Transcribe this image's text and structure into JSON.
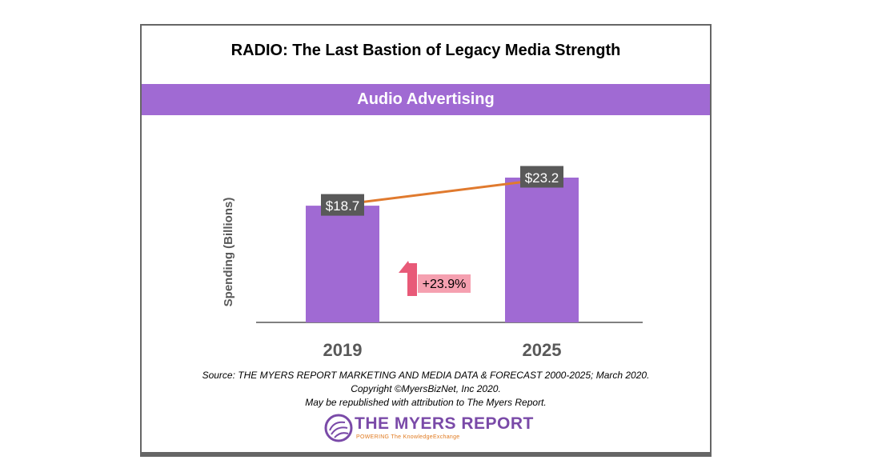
{
  "title": "RADIO: The Last Bastion of Legacy Media Strength",
  "banner": "Audio Advertising",
  "chart_data": {
    "type": "bar",
    "categories": [
      "2019",
      "2025"
    ],
    "values": [
      18.7,
      23.2
    ],
    "value_labels": [
      "$18.7",
      "$23.2"
    ],
    "ylabel": "Spending (Billions)",
    "ylim": [
      0,
      23.2
    ],
    "trend_line": true,
    "change_label": "+23.9%",
    "grid": false,
    "legend": "none",
    "colors": {
      "bar": "#a06ad3",
      "trend_line": "#e07a2e",
      "value_label_bg": "#595959",
      "change_bg": "#f5a0b0",
      "arrow": "#e85a78",
      "axis": "#000000",
      "category_text": "#595959"
    }
  },
  "source": {
    "line1": "Source: THE MYERS REPORT MARKETING AND MEDIA DATA & FORECAST 2000-2025; March 2020.",
    "line2": "Copyright ©MyersBizNet, Inc 2020.",
    "line3": "May be republished with attribution to The Myers Report."
  },
  "logo": {
    "name": "THE MYERS REPORT",
    "tagline": "POWERING The KnowledgeExchange",
    "colors": {
      "name": "#7a4aa8",
      "tagline": "#e07a20"
    }
  }
}
